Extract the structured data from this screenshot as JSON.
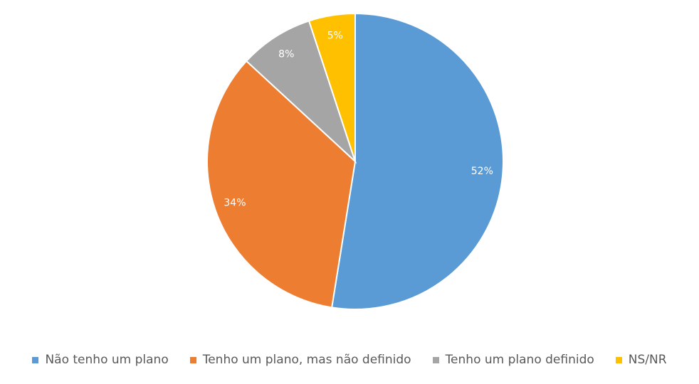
{
  "chart_data": {
    "type": "pie",
    "categories": [
      "Não tenho um plano",
      "Tenho um plano, mas não definido",
      "Tenho um plano definido",
      "NS/NR"
    ],
    "values": [
      52,
      34,
      8,
      5
    ],
    "value_labels": [
      "52%",
      "34%",
      "8%",
      "5%"
    ],
    "colors": [
      "#5b9bd5",
      "#ed7d31",
      "#a5a5a5",
      "#ffc000"
    ],
    "legend": "bottom"
  }
}
